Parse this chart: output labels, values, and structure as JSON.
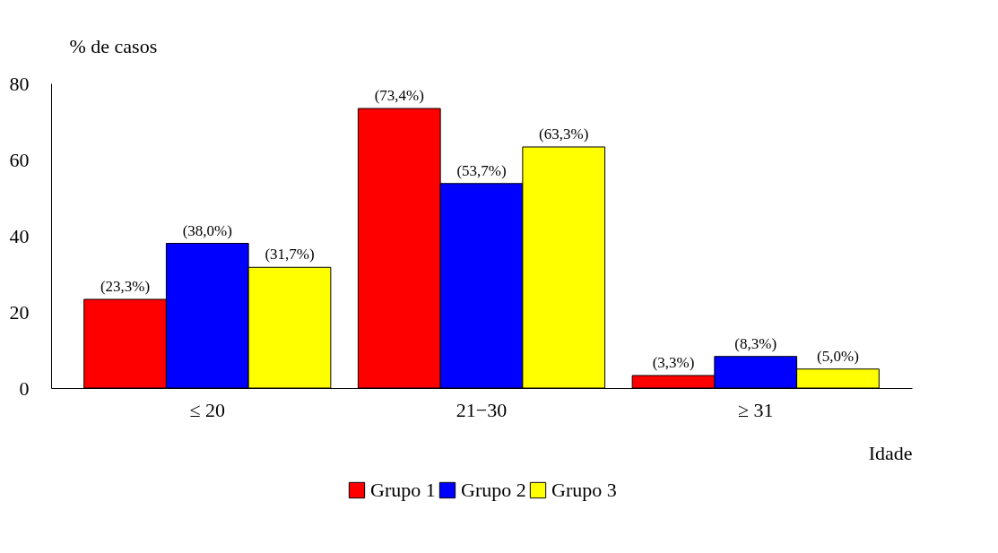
{
  "chart_data": {
    "type": "bar",
    "ylabel": "% de casos",
    "xlabel": "Idade",
    "categories": [
      "≤ 20",
      "21−30",
      "≥ 31"
    ],
    "series": [
      {
        "name": "Grupo 1",
        "color": "#ff0000",
        "values": [
          23.3,
          73.4,
          3.3
        ],
        "value_labels": [
          "(23,3%)",
          "(73,4%)",
          "(3,3%)"
        ]
      },
      {
        "name": "Grupo 2",
        "color": "#0000ff",
        "values": [
          38.0,
          53.7,
          8.3
        ],
        "value_labels": [
          "(38,0%)",
          "(53,7%)",
          "(8,3%)"
        ]
      },
      {
        "name": "Grupo 3",
        "color": "#ffff00",
        "values": [
          31.7,
          63.3,
          5.0
        ],
        "value_labels": [
          "(31,7%)",
          "(63,3%)",
          "(5,0%)"
        ]
      }
    ],
    "ylim": [
      0,
      80
    ],
    "yticks": [
      0,
      20,
      40,
      60,
      80
    ],
    "grid": false,
    "legend": "bottom"
  }
}
